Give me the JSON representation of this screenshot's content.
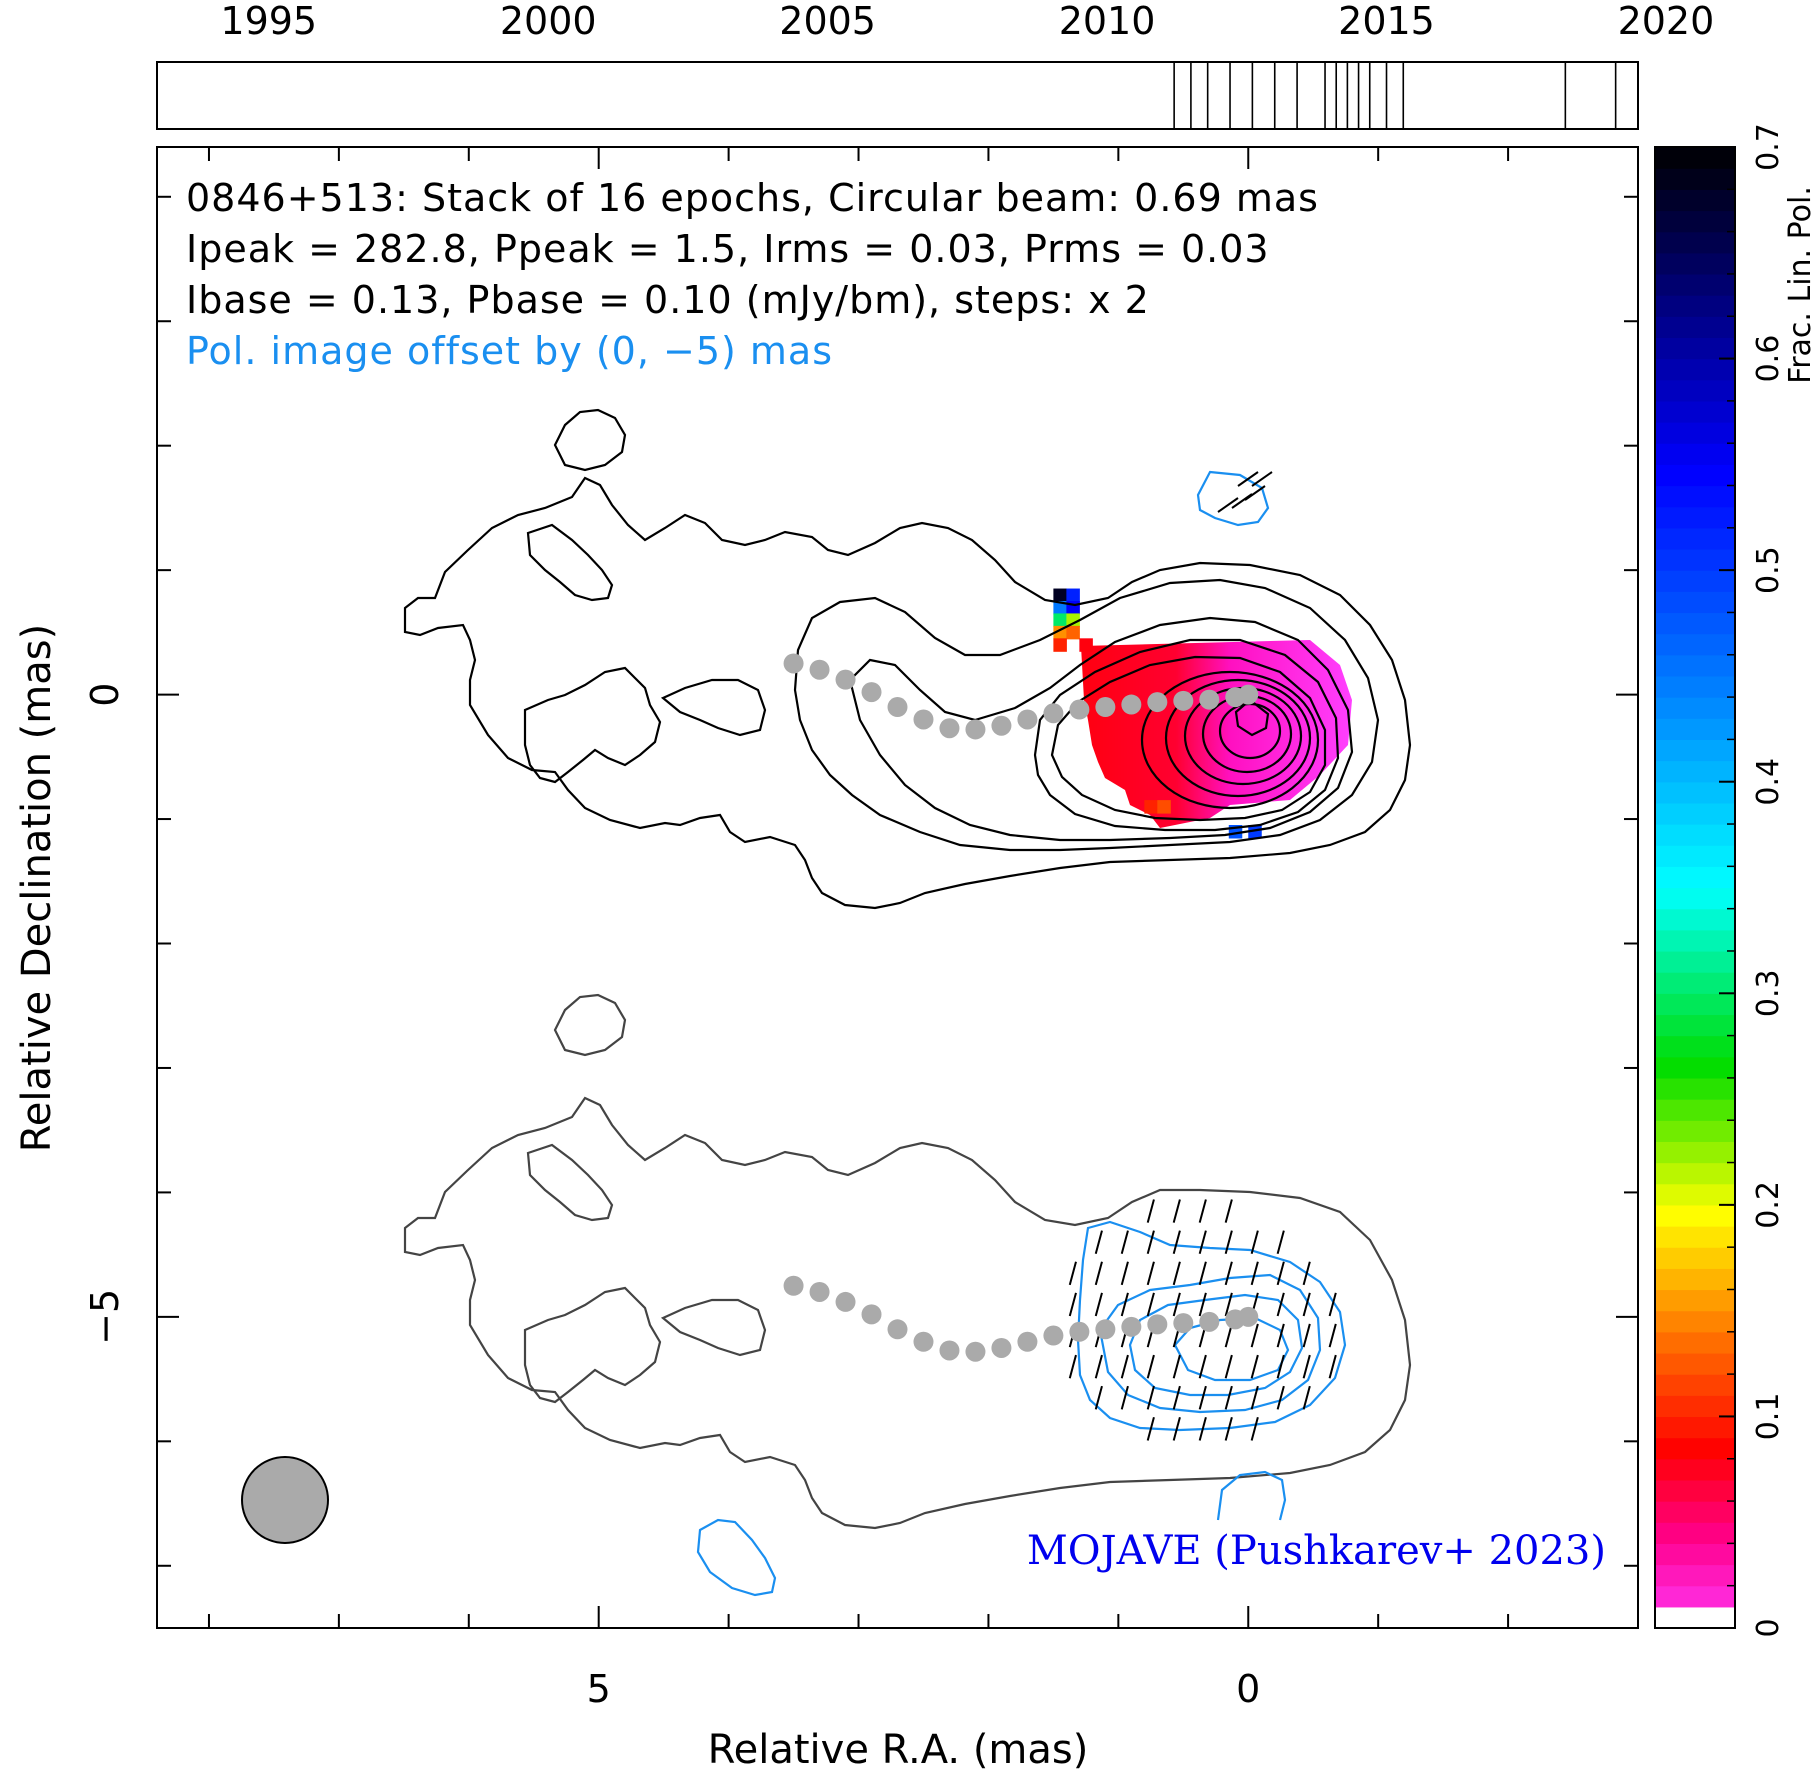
{
  "chart_data": {
    "type": "heatmap",
    "header": {
      "line1": "0846+513: Stack of 16 epochs, Circular beam: 0.69 mas",
      "line2": "Ipeak = 282.8, Ppeak = 1.5, Irms = 0.03, Prms = 0.03",
      "line3": "Ibase = 0.13, Pbase = 0.10 (mJy/bm), steps: x 2",
      "line4": "Pol. image offset by (0, −5) mas"
    },
    "credit": "MOJAVE (Pushkarev+ 2023)",
    "xlabel": "Relative R.A. (mas)",
    "ylabel": "Relative Declination (mas)",
    "colorbar_label": "Frac. Lin. Pol.",
    "xlim": [
      8.4,
      -3.0
    ],
    "ylim": [
      -7.5,
      4.4
    ],
    "x_ticks": [
      5,
      0
    ],
    "x_tick_labels": [
      "5",
      "0"
    ],
    "y_ticks": [
      0,
      -5
    ],
    "y_tick_labels": [
      "0",
      "−5"
    ],
    "colorbar": {
      "range": [
        0,
        0.7
      ],
      "ticks": [
        0,
        0.1,
        0.2,
        0.3,
        0.4,
        0.5,
        0.6,
        0.7
      ],
      "tick_labels": [
        "0",
        "0.1",
        "0.2",
        "0.3",
        "0.4",
        "0.5",
        "0.6",
        "0.7"
      ]
    },
    "epoch_axis": {
      "range": [
        1993,
        2019.5
      ],
      "year_ticks": [
        1995,
        2000,
        2005,
        2010,
        2015,
        2020
      ],
      "year_labels": [
        "1995",
        "2000",
        "2005",
        "2010",
        "2015",
        "2020"
      ],
      "epochs": [
        2011.2,
        2011.5,
        2011.8,
        2012.2,
        2012.6,
        2013.0,
        2013.4,
        2013.9,
        2014.1,
        2014.3,
        2014.5,
        2014.7,
        2015.0,
        2015.3,
        2018.2,
        2019.1
      ]
    },
    "epoch_count": 16,
    "beam_fwhm_mas": 0.69,
    "ridge_line": [
      [
        3.5,
        0.25
      ],
      [
        3.3,
        0.2
      ],
      [
        3.1,
        0.12
      ],
      [
        2.9,
        0.02
      ],
      [
        2.7,
        -0.1
      ],
      [
        2.5,
        -0.2
      ],
      [
        2.3,
        -0.27
      ],
      [
        2.1,
        -0.28
      ],
      [
        1.9,
        -0.25
      ],
      [
        1.7,
        -0.2
      ],
      [
        1.5,
        -0.15
      ],
      [
        1.3,
        -0.12
      ],
      [
        1.1,
        -0.1
      ],
      [
        0.9,
        -0.08
      ],
      [
        0.7,
        -0.06
      ],
      [
        0.5,
        -0.05
      ],
      [
        0.3,
        -0.04
      ],
      [
        0.1,
        -0.02
      ],
      [
        0.0,
        0.0
      ]
    ],
    "frac_pol_pixels": [
      {
        "x": 1.45,
        "y": 0.8,
        "fpol": 0.68
      },
      {
        "x": 1.35,
        "y": 0.8,
        "fpol": 0.52
      },
      {
        "x": 1.45,
        "y": 0.7,
        "fpol": 0.45
      },
      {
        "x": 1.35,
        "y": 0.7,
        "fpol": 0.55
      },
      {
        "x": 1.45,
        "y": 0.6,
        "fpol": 0.3
      },
      {
        "x": 1.35,
        "y": 0.6,
        "fpol": 0.22
      },
      {
        "x": 1.45,
        "y": 0.5,
        "fpol": 0.15
      },
      {
        "x": 1.35,
        "y": 0.5,
        "fpol": 0.13
      },
      {
        "x": 1.45,
        "y": 0.4,
        "fpol": 0.1
      },
      {
        "x": 1.25,
        "y": 0.4,
        "fpol": 0.08
      },
      {
        "x": 0.75,
        "y": -0.9,
        "fpol": 0.1
      },
      {
        "x": 0.65,
        "y": -0.9,
        "fpol": 0.12
      },
      {
        "x": 0.1,
        "y": -1.1,
        "fpol": 0.48
      },
      {
        "x": -0.05,
        "y": -1.1,
        "fpol": 0.5
      }
    ],
    "grid": false,
    "legend": "none"
  }
}
